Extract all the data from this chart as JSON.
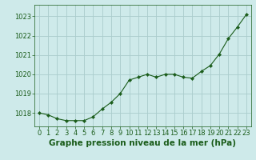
{
  "x": [
    0,
    1,
    2,
    3,
    4,
    5,
    6,
    7,
    8,
    9,
    10,
    11,
    12,
    13,
    14,
    15,
    16,
    17,
    18,
    19,
    20,
    21,
    22,
    23
  ],
  "y": [
    1018.0,
    1017.9,
    1017.7,
    1017.6,
    1017.6,
    1017.6,
    1017.8,
    1018.2,
    1018.55,
    1019.0,
    1019.7,
    1019.85,
    1020.0,
    1019.85,
    1020.0,
    1020.0,
    1019.85,
    1019.8,
    1020.15,
    1020.45,
    1021.05,
    1021.85,
    1022.45,
    1023.1
  ],
  "line_color": "#1a5c1a",
  "marker": "D",
  "marker_size": 2.2,
  "bg_color": "#ceeaea",
  "grid_color": "#aacccc",
  "xlabel": "Graphe pression niveau de la mer (hPa)",
  "xlabel_fontsize": 7.5,
  "xlabel_color": "#1a5c1a",
  "tick_color": "#1a5c1a",
  "tick_fontsize": 6.0,
  "ylim": [
    1017.3,
    1023.6
  ],
  "yticks": [
    1018,
    1019,
    1020,
    1021,
    1022,
    1023
  ],
  "xlim": [
    -0.5,
    23.5
  ],
  "xticks": [
    0,
    1,
    2,
    3,
    4,
    5,
    6,
    7,
    8,
    9,
    10,
    11,
    12,
    13,
    14,
    15,
    16,
    17,
    18,
    19,
    20,
    21,
    22,
    23
  ]
}
